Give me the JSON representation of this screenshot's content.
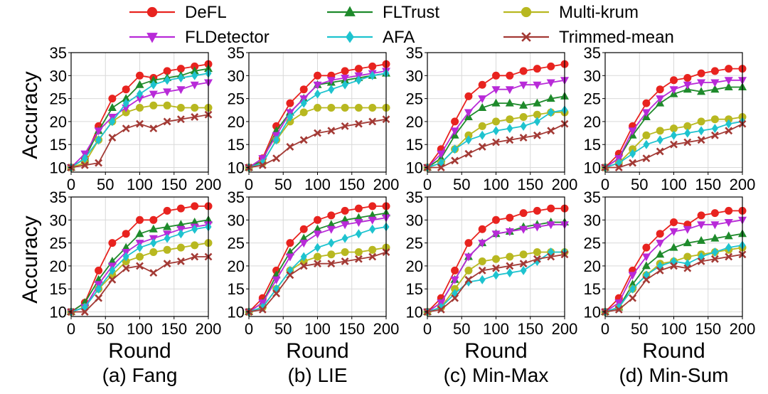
{
  "legend": {
    "items": [
      {
        "label": "DeFL",
        "color": "#e8231f",
        "marker": "circle"
      },
      {
        "label": "FLTrust",
        "color": "#1e8a2b",
        "marker": "triangle-up"
      },
      {
        "label": "Multi-krum",
        "color": "#b8b820",
        "marker": "circle"
      },
      {
        "label": "FLDetector",
        "color": "#b82ad8",
        "marker": "triangle-down"
      },
      {
        "label": "AFA",
        "color": "#1ec3cf",
        "marker": "diamond"
      },
      {
        "label": "Trimmed-mean",
        "color": "#a33a35",
        "marker": "x"
      }
    ]
  },
  "ylabel": "Accuracy",
  "xlabel": "Round",
  "captions": [
    "(a) Fang",
    "(b) LIE",
    "(c) Min-Max",
    "(d) Min-Sum"
  ],
  "chart_data": [
    {
      "type": "line",
      "row": 0,
      "col": 0,
      "x": [
        0,
        20,
        40,
        60,
        80,
        100,
        120,
        140,
        160,
        180,
        200
      ],
      "xlim": [
        0,
        200
      ],
      "ylim": [
        9,
        35
      ],
      "xticks": [
        0,
        50,
        100,
        150,
        200
      ],
      "yticks": [
        10,
        15,
        20,
        25,
        30,
        35
      ],
      "grid": true,
      "series": [
        {
          "name": "DeFL",
          "values": [
            10,
            12,
            19,
            25,
            27,
            30,
            29.5,
            31,
            31.5,
            32,
            32.5
          ]
        },
        {
          "name": "FLTrust",
          "values": [
            10,
            12,
            18,
            23,
            25,
            28,
            29,
            29.5,
            30,
            31,
            31.5
          ]
        },
        {
          "name": "Multi-krum",
          "values": [
            10,
            11,
            16,
            20,
            22,
            23,
            23.5,
            23.5,
            23,
            23,
            23
          ]
        },
        {
          "name": "FLDetector",
          "values": [
            10,
            13,
            18,
            21,
            23,
            25,
            26,
            26.5,
            27,
            28,
            28.5
          ]
        },
        {
          "name": "AFA",
          "values": [
            10,
            12,
            16,
            20,
            24,
            26,
            28,
            29,
            29.5,
            30,
            30.5
          ]
        },
        {
          "name": "Trimmed-mean",
          "values": [
            10,
            10.5,
            11,
            16.5,
            18.5,
            19.5,
            18.5,
            20,
            20.5,
            21,
            21.5
          ]
        }
      ]
    },
    {
      "type": "line",
      "row": 0,
      "col": 1,
      "x": [
        0,
        20,
        40,
        60,
        80,
        100,
        120,
        140,
        160,
        180,
        200
      ],
      "xlim": [
        0,
        200
      ],
      "ylim": [
        9,
        35
      ],
      "xticks": [
        0,
        50,
        100,
        150,
        200
      ],
      "yticks": [
        10,
        15,
        20,
        25,
        30,
        35
      ],
      "grid": true,
      "series": [
        {
          "name": "DeFL",
          "values": [
            10,
            12,
            19,
            24,
            27,
            30,
            30,
            31,
            31.5,
            32,
            32.5
          ]
        },
        {
          "name": "FLTrust",
          "values": [
            10,
            11.5,
            18,
            22,
            25,
            28,
            28.5,
            29,
            29.5,
            30,
            30.5
          ]
        },
        {
          "name": "Multi-krum",
          "values": [
            10,
            11,
            16,
            20,
            22,
            23,
            23,
            23,
            23,
            23,
            23
          ]
        },
        {
          "name": "FLDetector",
          "values": [
            10,
            12,
            17,
            22,
            25,
            28,
            29,
            29.5,
            30,
            30.5,
            31
          ]
        },
        {
          "name": "AFA",
          "values": [
            10,
            11,
            16,
            21,
            24,
            26,
            27,
            28,
            29,
            30,
            30.5
          ]
        },
        {
          "name": "Trimmed-mean",
          "values": [
            10,
            10.5,
            12,
            14.5,
            16,
            17.5,
            18,
            19,
            19.5,
            20,
            20.5
          ]
        }
      ]
    },
    {
      "type": "line",
      "row": 0,
      "col": 2,
      "x": [
        0,
        20,
        40,
        60,
        80,
        100,
        120,
        140,
        160,
        180,
        200
      ],
      "xlim": [
        0,
        200
      ],
      "ylim": [
        9,
        35
      ],
      "xticks": [
        0,
        50,
        100,
        150,
        200
      ],
      "yticks": [
        10,
        15,
        20,
        25,
        30,
        35
      ],
      "grid": true,
      "series": [
        {
          "name": "DeFL",
          "values": [
            10,
            14,
            20,
            25.5,
            28,
            30,
            30,
            31,
            31.5,
            32,
            32.5
          ]
        },
        {
          "name": "FLTrust",
          "values": [
            10,
            12,
            17,
            21,
            23,
            24,
            24,
            23.5,
            24,
            25,
            25.5
          ]
        },
        {
          "name": "Multi-krum",
          "values": [
            10,
            11,
            14,
            17,
            19,
            20,
            20.5,
            21,
            21.5,
            22,
            22
          ]
        },
        {
          "name": "FLDetector",
          "values": [
            10,
            13,
            18,
            22,
            25,
            27,
            27,
            28,
            28,
            28.5,
            29
          ]
        },
        {
          "name": "AFA",
          "values": [
            10,
            11,
            14,
            16,
            17,
            18,
            18.5,
            19,
            20,
            22,
            22.5
          ]
        },
        {
          "name": "Trimmed-mean",
          "values": [
            10,
            10,
            11.5,
            13,
            14.5,
            15.5,
            16,
            16.5,
            17,
            18,
            19.5
          ]
        }
      ]
    },
    {
      "type": "line",
      "row": 0,
      "col": 3,
      "x": [
        0,
        20,
        40,
        60,
        80,
        100,
        120,
        140,
        160,
        180,
        200
      ],
      "xlim": [
        0,
        200
      ],
      "ylim": [
        9,
        35
      ],
      "xticks": [
        0,
        50,
        100,
        150,
        200
      ],
      "yticks": [
        10,
        15,
        20,
        25,
        30,
        35
      ],
      "grid": true,
      "series": [
        {
          "name": "DeFL",
          "values": [
            10,
            13,
            19,
            24,
            27,
            29,
            29.5,
            30.5,
            31,
            31.5,
            31.5
          ]
        },
        {
          "name": "FLTrust",
          "values": [
            10,
            12,
            17,
            21,
            24,
            26,
            27,
            26.5,
            27,
            27.5,
            27.5
          ]
        },
        {
          "name": "Multi-krum",
          "values": [
            10,
            11,
            14,
            17,
            18,
            18.5,
            19,
            20,
            20.5,
            20.5,
            21
          ]
        },
        {
          "name": "FLDetector",
          "values": [
            10,
            12,
            18,
            22,
            25,
            27,
            28,
            28.5,
            28.5,
            29,
            29
          ]
        },
        {
          "name": "AFA",
          "values": [
            10,
            11,
            13,
            15,
            16,
            17,
            17.5,
            18,
            18.5,
            19.5,
            20
          ]
        },
        {
          "name": "Trimmed-mean",
          "values": [
            10,
            10,
            11,
            12,
            13.5,
            15,
            15.5,
            16,
            17,
            18,
            19.5
          ]
        }
      ]
    },
    {
      "type": "line",
      "row": 1,
      "col": 0,
      "x": [
        0,
        20,
        40,
        60,
        80,
        100,
        120,
        140,
        160,
        180,
        200
      ],
      "xlim": [
        0,
        200
      ],
      "ylim": [
        9,
        35
      ],
      "xticks": [
        0,
        50,
        100,
        150,
        200
      ],
      "yticks": [
        10,
        15,
        20,
        25,
        30,
        35
      ],
      "grid": true,
      "series": [
        {
          "name": "DeFL",
          "values": [
            10,
            12,
            19,
            25,
            27,
            30,
            30,
            32,
            32.5,
            33,
            33
          ]
        },
        {
          "name": "FLTrust",
          "values": [
            10,
            12,
            17,
            21,
            24,
            27,
            28,
            28.5,
            29,
            29.5,
            30
          ]
        },
        {
          "name": "Multi-krum",
          "values": [
            10,
            11,
            15,
            18,
            21,
            22,
            23,
            23.5,
            24,
            24.5,
            25
          ]
        },
        {
          "name": "FLDetector",
          "values": [
            10,
            11,
            16,
            20,
            23,
            25,
            26,
            27,
            28,
            28.5,
            29
          ]
        },
        {
          "name": "AFA",
          "values": [
            10,
            11,
            15,
            19,
            22,
            24,
            25,
            26,
            27,
            28,
            28.5
          ]
        },
        {
          "name": "Trimmed-mean",
          "values": [
            10,
            10,
            13,
            17,
            19.5,
            20,
            18.5,
            20.5,
            21,
            22,
            22
          ]
        }
      ]
    },
    {
      "type": "line",
      "row": 1,
      "col": 1,
      "x": [
        0,
        20,
        40,
        60,
        80,
        100,
        120,
        140,
        160,
        180,
        200
      ],
      "xlim": [
        0,
        200
      ],
      "ylim": [
        9,
        35
      ],
      "xticks": [
        0,
        50,
        100,
        150,
        200
      ],
      "yticks": [
        10,
        15,
        20,
        25,
        30,
        35
      ],
      "grid": true,
      "series": [
        {
          "name": "DeFL",
          "values": [
            10,
            13,
            19,
            25,
            28,
            30,
            31,
            32,
            32.5,
            33,
            33
          ]
        },
        {
          "name": "FLTrust",
          "values": [
            10,
            12,
            18,
            23,
            26,
            28,
            29,
            30,
            30.5,
            31,
            31.5
          ]
        },
        {
          "name": "Multi-krum",
          "values": [
            10,
            11,
            15,
            19,
            21,
            22,
            22.5,
            23,
            23,
            23.5,
            24
          ]
        },
        {
          "name": "FLDetector",
          "values": [
            10,
            12,
            17,
            22,
            25,
            27,
            28,
            29,
            29.5,
            30,
            30.5
          ]
        },
        {
          "name": "AFA",
          "values": [
            10,
            11,
            15,
            19,
            22,
            24,
            25,
            26,
            27,
            28,
            28.5
          ]
        },
        {
          "name": "Trimmed-mean",
          "values": [
            10,
            10.5,
            14,
            18,
            20,
            20.5,
            20.5,
            21,
            21.5,
            22,
            23
          ]
        }
      ]
    },
    {
      "type": "line",
      "row": 1,
      "col": 2,
      "x": [
        0,
        20,
        40,
        60,
        80,
        100,
        120,
        140,
        160,
        180,
        200
      ],
      "xlim": [
        0,
        200
      ],
      "ylim": [
        9,
        35
      ],
      "xticks": [
        0,
        50,
        100,
        150,
        200
      ],
      "yticks": [
        10,
        15,
        20,
        25,
        30,
        35
      ],
      "grid": true,
      "series": [
        {
          "name": "DeFL",
          "values": [
            10,
            13,
            19,
            25,
            28,
            30,
            30.5,
            31.5,
            32,
            32.5,
            32.5
          ]
        },
        {
          "name": "FLTrust",
          "values": [
            10,
            12,
            17,
            22,
            25,
            27,
            27.5,
            28.5,
            29,
            29.5,
            29.5
          ]
        },
        {
          "name": "Multi-krum",
          "values": [
            10,
            11,
            15,
            19,
            21,
            21.5,
            22,
            22.5,
            23,
            23,
            23
          ]
        },
        {
          "name": "FLDetector",
          "values": [
            10,
            12,
            17,
            22,
            25,
            27,
            27.5,
            28,
            28.5,
            29,
            29
          ]
        },
        {
          "name": "AFA",
          "values": [
            10,
            11,
            14,
            16.5,
            17,
            18,
            18.5,
            19,
            21,
            23,
            23
          ]
        },
        {
          "name": "Trimmed-mean",
          "values": [
            10,
            10.5,
            13,
            17,
            19,
            19.5,
            20,
            20.5,
            21.5,
            22,
            22.5
          ]
        }
      ]
    },
    {
      "type": "line",
      "row": 1,
      "col": 3,
      "x": [
        0,
        20,
        40,
        60,
        80,
        100,
        120,
        140,
        160,
        180,
        200
      ],
      "xlim": [
        0,
        200
      ],
      "ylim": [
        9,
        35
      ],
      "xticks": [
        0,
        50,
        100,
        150,
        200
      ],
      "yticks": [
        10,
        15,
        20,
        25,
        30,
        35
      ],
      "grid": true,
      "series": [
        {
          "name": "DeFL",
          "values": [
            10,
            13,
            19,
            24,
            27,
            29.5,
            29,
            31,
            31.5,
            32,
            32
          ]
        },
        {
          "name": "FLTrust",
          "values": [
            10,
            11,
            16,
            20,
            22.5,
            24,
            25,
            25.5,
            26,
            26.5,
            27
          ]
        },
        {
          "name": "Multi-krum",
          "values": [
            10,
            11,
            15,
            18,
            20.5,
            21,
            22,
            22.5,
            23,
            23.5,
            24
          ]
        },
        {
          "name": "FLDetector",
          "values": [
            10,
            12,
            18,
            22,
            25,
            27.5,
            28,
            29,
            29,
            29.5,
            30
          ]
        },
        {
          "name": "AFA",
          "values": [
            10,
            11,
            15,
            18,
            20,
            21,
            20.5,
            22,
            23,
            24,
            24.5
          ]
        },
        {
          "name": "Trimmed-mean",
          "values": [
            10,
            10.5,
            13,
            17,
            19,
            20,
            19.5,
            21,
            21.5,
            22,
            22.5
          ]
        }
      ]
    }
  ]
}
